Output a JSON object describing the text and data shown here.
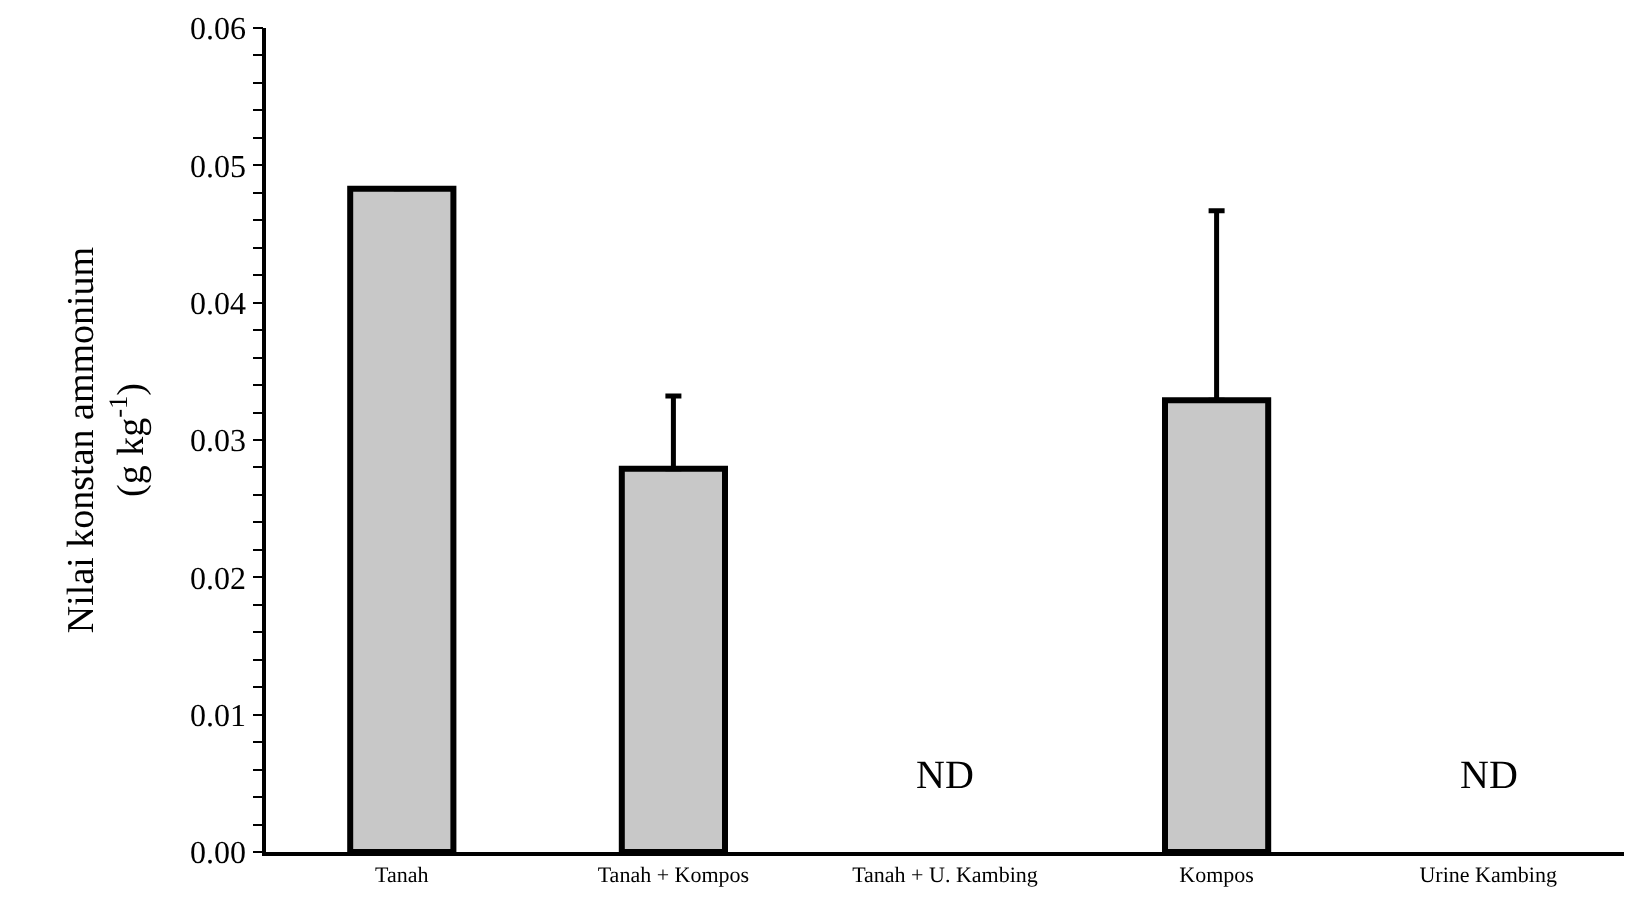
{
  "chart_data": {
    "type": "bar",
    "ylabel": "Nilai konstan ammonium\n(g kg$^{-1}$)",
    "categories": [
      "Tanah",
      "Tanah + Kompos",
      "Tanah + U. Kambing",
      "Kompos",
      "Urine Kambing"
    ],
    "values": [
      0.0483,
      0.0279,
      null,
      0.0329,
      null
    ],
    "errors": [
      null,
      [
        0.0279,
        0.0332
      ],
      null,
      [
        0.0329,
        0.0467
      ],
      null
    ],
    "color": "#c8c8c8",
    "ylim": [
      0,
      0.06
    ],
    "yticks": [
      {
        "value": 0,
        "label": "0.00"
      },
      {
        "value": 0.002,
        "label": null
      },
      {
        "value": 0.004,
        "label": null
      },
      {
        "value": 0.006,
        "label": null
      },
      {
        "value": 0.008,
        "label": null
      },
      {
        "value": 0.01,
        "label": "0.01"
      },
      {
        "value": 0.012,
        "label": null
      },
      {
        "value": 0.014,
        "label": null
      },
      {
        "value": 0.016,
        "label": null
      },
      {
        "value": 0.018,
        "label": null
      },
      {
        "value": 0.02,
        "label": "0.02"
      },
      {
        "value": 0.022,
        "label": null
      },
      {
        "value": 0.024,
        "label": null
      },
      {
        "value": 0.026,
        "label": null
      },
      {
        "value": 0.028,
        "label": null
      },
      {
        "value": 0.03,
        "label": "0.03"
      },
      {
        "value": 0.032,
        "label": null
      },
      {
        "value": 0.034,
        "label": null
      },
      {
        "value": 0.036,
        "label": null
      },
      {
        "value": 0.038,
        "label": null
      },
      {
        "value": 0.04,
        "label": "0.04"
      },
      {
        "value": 0.042,
        "label": null
      },
      {
        "value": 0.044,
        "label": null
      },
      {
        "value": 0.046,
        "label": null
      },
      {
        "value": 0.048,
        "label": null
      },
      {
        "value": 0.05,
        "label": "0.05"
      },
      {
        "value": 0.052,
        "label": null
      },
      {
        "value": 0.054,
        "label": null
      },
      {
        "value": 0.056,
        "label": null
      },
      {
        "value": 0.058,
        "label": null
      },
      {
        "value": 0.06,
        "label": "0.06"
      }
    ],
    "annotations": [
      "ND",
      "ND"
    ]
  }
}
